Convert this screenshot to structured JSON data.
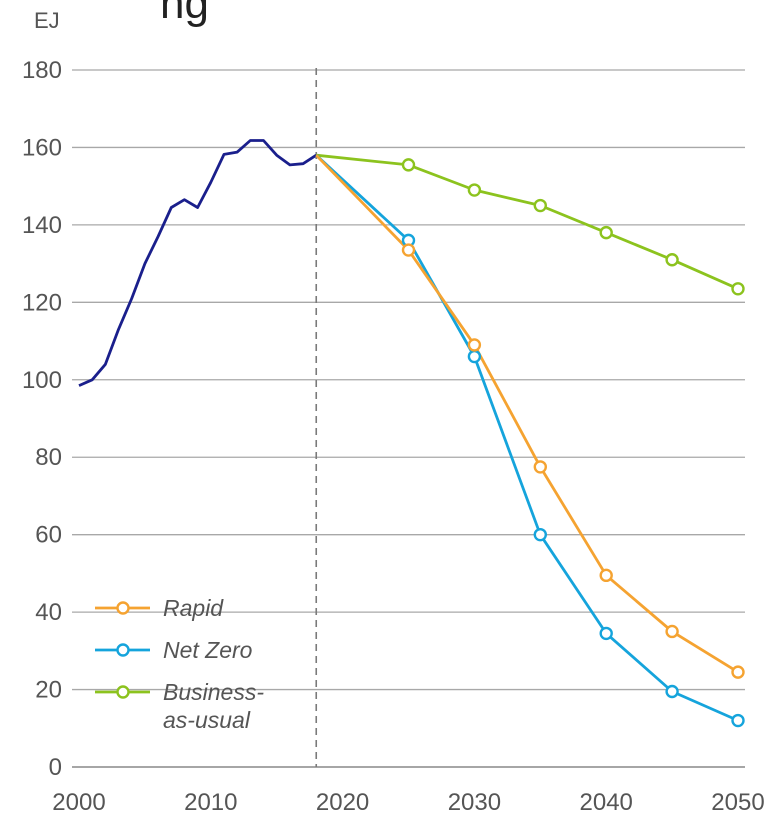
{
  "chart_data": {
    "type": "line",
    "ylabel": "EJ",
    "xlim": [
      2000,
      2050
    ],
    "ylim": [
      0,
      180
    ],
    "x_ticks": [
      2000,
      2010,
      2020,
      2030,
      2040,
      2050
    ],
    "y_ticks": [
      0,
      20,
      40,
      60,
      80,
      100,
      120,
      140,
      160,
      180
    ],
    "grid": "horizontal",
    "reference_line_x": 2018,
    "legend_position": "bottom-left",
    "history": {
      "color": "#1a1f8c",
      "points": [
        [
          2000,
          98.5
        ],
        [
          2001,
          100
        ],
        [
          2002,
          104
        ],
        [
          2003,
          113
        ],
        [
          2004,
          121
        ],
        [
          2005,
          130
        ],
        [
          2006,
          137
        ],
        [
          2007,
          144.5
        ],
        [
          2008,
          146.5
        ],
        [
          2009,
          144.5
        ],
        [
          2010,
          151
        ],
        [
          2011,
          158.2
        ],
        [
          2012,
          158.8
        ],
        [
          2013,
          161.8
        ],
        [
          2014,
          161.8
        ],
        [
          2015,
          158
        ],
        [
          2016,
          155.5
        ],
        [
          2017,
          155.8
        ],
        [
          2018,
          158
        ]
      ]
    },
    "series": [
      {
        "name": "Rapid",
        "color": "#f5a331",
        "points": [
          [
            2018,
            158
          ],
          [
            2025,
            133.5
          ],
          [
            2030,
            109
          ],
          [
            2035,
            77.5
          ],
          [
            2040,
            49.5
          ],
          [
            2045,
            35
          ],
          [
            2050,
            24.5
          ]
        ]
      },
      {
        "name": "Net Zero",
        "color": "#15a4dc",
        "points": [
          [
            2018,
            158
          ],
          [
            2025,
            136
          ],
          [
            2030,
            106
          ],
          [
            2035,
            60
          ],
          [
            2040,
            34.5
          ],
          [
            2045,
            19.5
          ],
          [
            2050,
            12
          ]
        ]
      },
      {
        "name": "Business-as-usual",
        "legend_lines": [
          "Business-",
          "as-usual"
        ],
        "color": "#8cc31e",
        "points": [
          [
            2018,
            158
          ],
          [
            2025,
            155.5
          ],
          [
            2030,
            149
          ],
          [
            2035,
            145
          ],
          [
            2040,
            138
          ],
          [
            2045,
            131
          ],
          [
            2050,
            123.5
          ]
        ]
      }
    ]
  },
  "partial_title": "ng"
}
